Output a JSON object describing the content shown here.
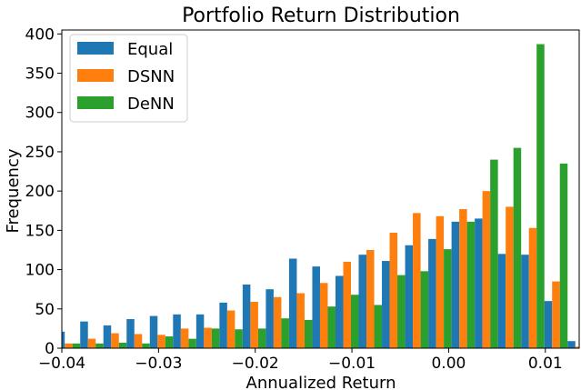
{
  "chart_data": {
    "type": "bar",
    "title": "Portfolio Return Distribution",
    "xlabel": "Annualized Return",
    "ylabel": "Frequency",
    "xlim": [
      -0.04,
      0.0135
    ],
    "ylim": [
      0,
      405
    ],
    "bin_start": -0.0405,
    "bin_width": 0.0024,
    "xticks": [
      {
        "value": -0.04,
        "label": "−0.04"
      },
      {
        "value": -0.03,
        "label": "−0.03"
      },
      {
        "value": -0.02,
        "label": "−0.02"
      },
      {
        "value": -0.01,
        "label": "−0.01"
      },
      {
        "value": 0.0,
        "label": "0.00"
      },
      {
        "value": 0.01,
        "label": "0.01"
      }
    ],
    "yticks": [
      0,
      50,
      100,
      150,
      200,
      250,
      300,
      350,
      400
    ],
    "legend_position": "top-left",
    "series": [
      {
        "name": "Equal",
        "color": "#1f77b4",
        "values": [
          21,
          34,
          29,
          37,
          41,
          43,
          43,
          58,
          81,
          75,
          114,
          104,
          92,
          119,
          111,
          131,
          139,
          161,
          165,
          120,
          119,
          60,
          9,
          0
        ]
      },
      {
        "name": "DSNN",
        "color": "#ff7f0e",
        "values": [
          6,
          12,
          19,
          18,
          17,
          25,
          26,
          48,
          59,
          65,
          70,
          83,
          110,
          125,
          147,
          172,
          168,
          177,
          200,
          180,
          153,
          85,
          2,
          0
        ]
      },
      {
        "name": "DeNN",
        "color": "#2ca02c",
        "values": [
          6,
          6,
          7,
          6,
          15,
          12,
          25,
          24,
          25,
          38,
          36,
          53,
          68,
          55,
          93,
          98,
          126,
          161,
          240,
          255,
          387,
          235,
          2,
          0
        ]
      }
    ]
  }
}
